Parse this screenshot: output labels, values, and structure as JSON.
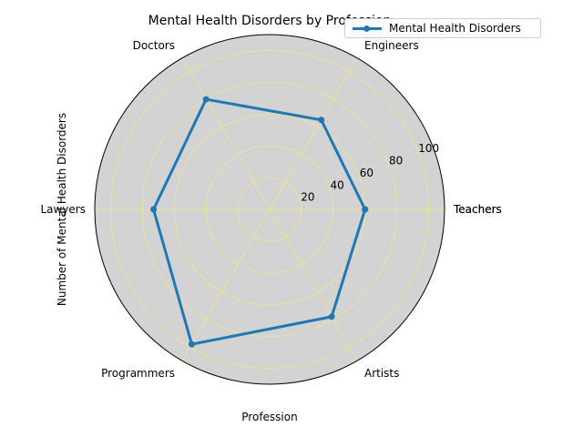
{
  "chart_data": {
    "type": "radar",
    "title": "Mental Health Disorders by Profession",
    "xlabel": "Profession",
    "ylabel": "Number of Mental Health Disorders",
    "categories": [
      "Teachers",
      "Engineers",
      "Doctors",
      "Lawyers",
      "Programmers",
      "Artists",
      "Teachers"
    ],
    "series": [
      {
        "name": "Mental Health Disorders",
        "values": [
          60,
          65,
          80,
          73,
          98,
          78,
          60
        ]
      }
    ],
    "rlim": [
      0,
      110
    ],
    "rticks": [
      20,
      40,
      60,
      80,
      100
    ],
    "grid": true,
    "legend": "top-right",
    "colors": {
      "line": "#1f77b4",
      "background": "#d3d3d3",
      "grid": "#f0e68c"
    }
  }
}
